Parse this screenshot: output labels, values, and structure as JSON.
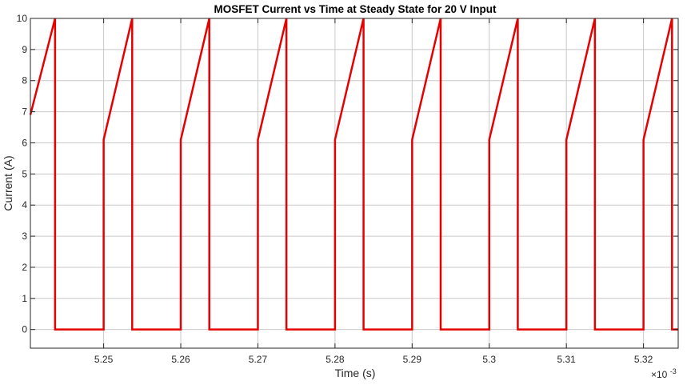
{
  "chart_data": {
    "type": "line",
    "title": "MOSFET Current vs Time at Steady State for 20 V Input",
    "xlabel": "Time (s)",
    "ylabel": "Current (A)",
    "x_exponent_label": "×10",
    "x_exponent_power": "-3",
    "x_scale": 0.001,
    "xlim": [
      5.2405,
      5.3245
    ],
    "ylim": [
      -0.6,
      10
    ],
    "x_ticks": [
      5.25,
      5.26,
      5.27,
      5.28,
      5.29,
      5.3,
      5.31,
      5.32
    ],
    "x_tick_labels": [
      "5.25",
      "5.26",
      "5.27",
      "5.28",
      "5.29",
      "5.3",
      "5.31",
      "5.32"
    ],
    "y_ticks": [
      0,
      1,
      2,
      3,
      4,
      5,
      6,
      7,
      8,
      9,
      10
    ],
    "y_tick_labels": [
      "0",
      "1",
      "2",
      "3",
      "4",
      "5",
      "6",
      "7",
      "8",
      "9",
      "10"
    ],
    "grid": true,
    "line_color": "#e60000",
    "series": [
      {
        "x": [
          5.2405,
          5.2437,
          5.2437,
          5.25,
          5.25,
          5.2537,
          5.2537,
          5.26,
          5.26,
          5.2637,
          5.2637,
          5.27,
          5.27,
          5.2737,
          5.2737,
          5.28,
          5.28,
          5.2837,
          5.2837,
          5.29,
          5.29,
          5.2937,
          5.2937,
          5.3,
          5.3,
          5.3037,
          5.3037,
          5.31,
          5.31,
          5.3137,
          5.3137,
          5.32,
          5.32,
          5.3237,
          5.3237,
          5.3245
        ],
        "y": [
          6.9,
          10,
          0,
          0,
          6.1,
          10,
          0,
          0,
          6.1,
          10,
          0,
          0,
          6.1,
          10,
          0,
          0,
          6.1,
          10,
          0,
          0,
          6.1,
          10,
          0,
          0,
          6.1,
          10,
          0,
          0,
          6.1,
          10,
          0,
          0,
          6.1,
          10,
          0,
          0
        ]
      }
    ]
  }
}
